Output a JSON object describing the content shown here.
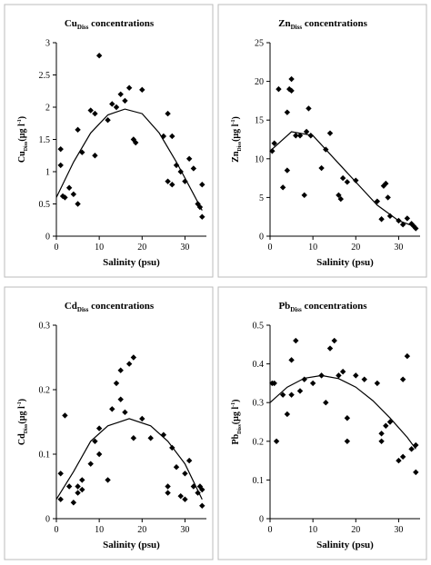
{
  "chart_data": [
    {
      "type": "scatter",
      "title": {
        "element": "Cu",
        "subscript": "Diss",
        "text": " concentrations"
      },
      "ylabel": {
        "element": "Cu",
        "subscript": "Diss",
        "unit": "(µg l",
        "superscript": "-1",
        "close": ")"
      },
      "xlabel": "Salinity (psu)",
      "xlim": [
        0,
        35
      ],
      "xticks": [
        0,
        10,
        20,
        30
      ],
      "ylim": [
        0,
        3
      ],
      "yticks": [
        0,
        0.5,
        1,
        1.5,
        2,
        2.5,
        3
      ],
      "color": "#000000",
      "x": [
        1,
        1,
        1.5,
        2,
        3,
        4,
        5,
        5,
        6,
        8,
        9,
        9,
        10,
        12,
        13,
        14,
        15,
        16,
        17,
        18,
        18.5,
        20,
        25,
        26,
        26,
        27,
        27,
        28,
        29,
        30,
        31,
        32,
        33,
        33.5,
        34,
        34
      ],
      "values": [
        1.35,
        1.1,
        0.62,
        0.6,
        0.75,
        0.65,
        1.65,
        0.5,
        1.3,
        1.95,
        1.9,
        1.25,
        2.8,
        1.8,
        2.05,
        2.0,
        2.2,
        2.1,
        2.3,
        1.5,
        1.45,
        2.27,
        1.55,
        0.85,
        1.9,
        1.55,
        0.8,
        1.1,
        1.0,
        0.85,
        1.2,
        1.05,
        0.5,
        0.45,
        0.8,
        0.3
      ],
      "fit": {
        "x": [
          0,
          4,
          8,
          12,
          16,
          20,
          24,
          28,
          32,
          34
        ],
        "values": [
          0.6,
          1.15,
          1.6,
          1.88,
          1.97,
          1.9,
          1.6,
          1.15,
          0.65,
          0.4
        ]
      }
    },
    {
      "type": "scatter",
      "title": {
        "element": "Zn",
        "subscript": "Diss",
        "text": " concentrations"
      },
      "ylabel": {
        "element": "Zn",
        "subscript": "Diss",
        "unit": "(µg l",
        "superscript": "-1",
        "close": ")"
      },
      "xlabel": "Salinity (psu)",
      "xlim": [
        0,
        35
      ],
      "xticks": [
        0,
        10,
        20,
        30
      ],
      "ylim": [
        0,
        25
      ],
      "yticks": [
        0,
        5,
        10,
        15,
        20,
        25
      ],
      "color": "#000000",
      "x": [
        0.5,
        1,
        2,
        3,
        4,
        4,
        4.5,
        5,
        5,
        6,
        7,
        8,
        8.5,
        9,
        9.5,
        12,
        13,
        14,
        16,
        16.5,
        17,
        18,
        20,
        25,
        26,
        26.5,
        27,
        27.5,
        28,
        30,
        31,
        32,
        33,
        33.5,
        34
      ],
      "values": [
        11,
        12,
        19,
        6.3,
        8.5,
        16,
        19,
        20.3,
        18.8,
        13,
        13,
        5.3,
        13.5,
        16.5,
        13,
        8.8,
        11.2,
        13.3,
        5.3,
        4.8,
        7.5,
        7,
        7.2,
        4.5,
        2.2,
        6.5,
        6.8,
        5,
        2.6,
        2,
        1.5,
        2.3,
        1.6,
        1.3,
        1.0
      ],
      "fit": {
        "x": [
          0,
          5,
          10,
          15,
          20,
          25,
          30,
          34
        ],
        "values": [
          11,
          13.5,
          13,
          10,
          7,
          4,
          2,
          1.2
        ]
      }
    },
    {
      "type": "scatter",
      "title": {
        "element": "Cd",
        "subscript": "Diss",
        "text": " concentrations"
      },
      "ylabel": {
        "element": "Cd",
        "subscript": "Diss",
        "unit": "(µg l",
        "superscript": "-1",
        "close": ")"
      },
      "xlabel": "Salinity (psu)",
      "xlim": [
        0,
        35
      ],
      "xticks": [
        0,
        10,
        20,
        30
      ],
      "ylim": [
        0,
        0.3
      ],
      "yticks": [
        0,
        0.1,
        0.2,
        0.3
      ],
      "color": "#000000",
      "x": [
        1,
        1,
        2,
        3,
        4,
        5,
        5,
        6,
        6,
        8,
        9,
        10,
        10,
        12,
        13,
        14,
        15,
        15,
        16,
        17,
        18,
        18,
        20,
        22,
        25,
        26,
        26,
        27,
        28,
        29,
        30,
        30,
        31,
        32,
        33,
        33.5,
        34,
        34
      ],
      "values": [
        0.07,
        0.03,
        0.16,
        0.05,
        0.025,
        0.05,
        0.04,
        0.06,
        0.045,
        0.085,
        0.12,
        0.1,
        0.14,
        0.06,
        0.17,
        0.21,
        0.23,
        0.185,
        0.165,
        0.24,
        0.25,
        0.125,
        0.155,
        0.125,
        0.13,
        0.05,
        0.04,
        0.11,
        0.08,
        0.035,
        0.03,
        0.07,
        0.09,
        0.05,
        0.04,
        0.05,
        0.045,
        0.02
      ],
      "fit": {
        "x": [
          0,
          4,
          8,
          12,
          17,
          22,
          26,
          30,
          34
        ],
        "values": [
          0.03,
          0.073,
          0.12,
          0.144,
          0.155,
          0.144,
          0.12,
          0.085,
          0.03
        ]
      }
    },
    {
      "type": "scatter",
      "title": {
        "element": "Pb",
        "subscript": "Diss",
        "text": " concentrations"
      },
      "ylabel": {
        "element": "Pb",
        "subscript": "Diss",
        "unit": "(µg l",
        "superscript": "-1",
        "close": ")"
      },
      "xlabel": "Salinity (psu)",
      "xlim": [
        0,
        35
      ],
      "xticks": [
        0,
        10,
        20,
        30
      ],
      "ylim": [
        0,
        0.5
      ],
      "yticks": [
        0,
        0.1,
        0.2,
        0.3,
        0.4,
        0.5
      ],
      "color": "#000000",
      "x": [
        0.5,
        1,
        1.5,
        3,
        4,
        5,
        5,
        6,
        7,
        8,
        10,
        12,
        13,
        14,
        15,
        16,
        17,
        18,
        18,
        20,
        22,
        25,
        26,
        26,
        27,
        28,
        30,
        31,
        31,
        32,
        33,
        34,
        34
      ],
      "values": [
        0.35,
        0.35,
        0.2,
        0.32,
        0.27,
        0.41,
        0.32,
        0.46,
        0.33,
        0.36,
        0.35,
        0.37,
        0.3,
        0.44,
        0.46,
        0.37,
        0.38,
        0.2,
        0.26,
        0.37,
        0.36,
        0.35,
        0.22,
        0.2,
        0.24,
        0.25,
        0.15,
        0.36,
        0.16,
        0.42,
        0.18,
        0.19,
        0.12
      ],
      "fit": {
        "x": [
          0,
          4,
          8,
          12,
          16,
          20,
          24,
          28,
          32,
          34
        ],
        "values": [
          0.3,
          0.34,
          0.363,
          0.37,
          0.362,
          0.34,
          0.305,
          0.26,
          0.21,
          0.18
        ]
      }
    }
  ]
}
